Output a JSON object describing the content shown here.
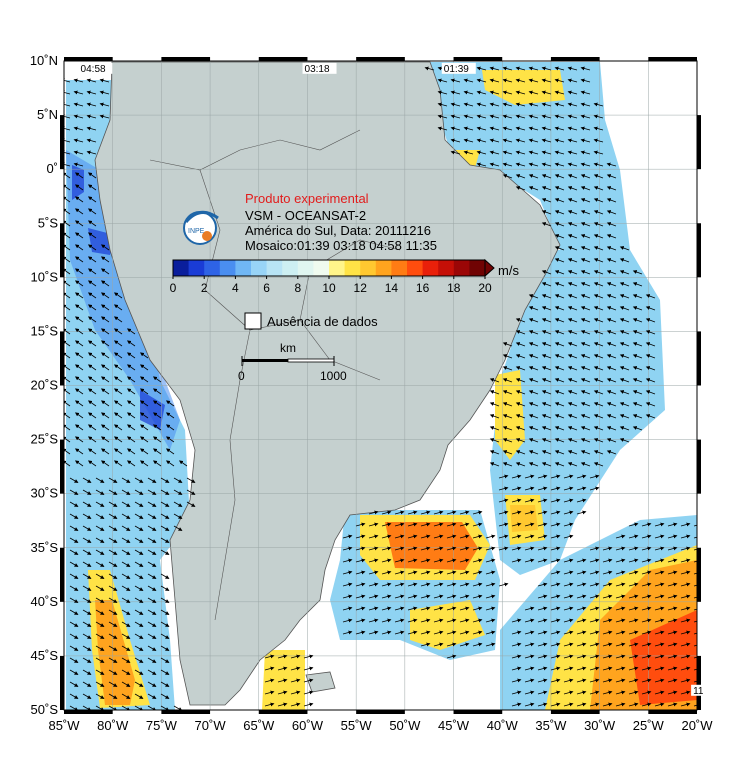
{
  "title_block": {
    "label": "Produto experimental",
    "sensor": "VSM - OCEANSAT-2",
    "region_date": "América do Sul, Data: 20111216",
    "mosaic": "Mosaico:01:39 03:18 04:58 11:35"
  },
  "logo": {
    "text": "INPE"
  },
  "colorbar": {
    "unit": "m/s",
    "ticks": [
      "0",
      "2",
      "4",
      "6",
      "8",
      "10",
      "12",
      "14",
      "16",
      "18",
      "20"
    ],
    "colors": [
      "#0a1e9c",
      "#1a3cd6",
      "#2e63e6",
      "#4a8ef0",
      "#70b7f5",
      "#98d4f7",
      "#b8e4f5",
      "#cdeff2",
      "#e0f6f0",
      "#f0fbef",
      "#fff58a",
      "#ffe346",
      "#ffc830",
      "#ffa41e",
      "#ff7c14",
      "#ff4d0e",
      "#e9200a",
      "#c50f07",
      "#9b0606",
      "#700303"
    ]
  },
  "legend": {
    "no_data": "Ausência de dados"
  },
  "scalebar": {
    "unit": "km",
    "start": "0",
    "end": "1000"
  },
  "pass_times": [
    {
      "lon": -83.3,
      "text": "04:58"
    },
    {
      "lon": -60.3,
      "text": "03:18"
    },
    {
      "lon": -46.0,
      "text": "01:39"
    },
    {
      "lon": -20.4,
      "text": "11"
    }
  ],
  "axes": {
    "lon_labels": [
      "85˚W",
      "80˚W",
      "75˚W",
      "70˚W",
      "65˚W",
      "60˚W",
      "55˚W",
      "50˚W",
      "45˚W",
      "40˚W",
      "35˚W",
      "30˚W",
      "25˚W",
      "20˚W"
    ],
    "lon_values": [
      -85,
      -80,
      -75,
      -70,
      -65,
      -60,
      -55,
      -50,
      -45,
      -40,
      -35,
      -30,
      -25,
      -20
    ],
    "lat_labels": [
      "10˚N",
      "5˚N",
      "0˚",
      "5˚S",
      "10˚S",
      "15˚S",
      "20˚S",
      "25˚S",
      "30˚S",
      "35˚S",
      "40˚S",
      "45˚S",
      "50˚S"
    ],
    "lat_values": [
      10,
      5,
      0,
      -5,
      -10,
      -15,
      -20,
      -25,
      -30,
      -35,
      -40,
      -45,
      -50
    ],
    "lon_range": [
      -85,
      -20
    ],
    "lat_range": [
      -50,
      10
    ]
  },
  "style": {
    "land": "#c5d0cf",
    "ocean_nodata": "#ffffff",
    "coast": "#555555",
    "arrow": "#000000"
  }
}
